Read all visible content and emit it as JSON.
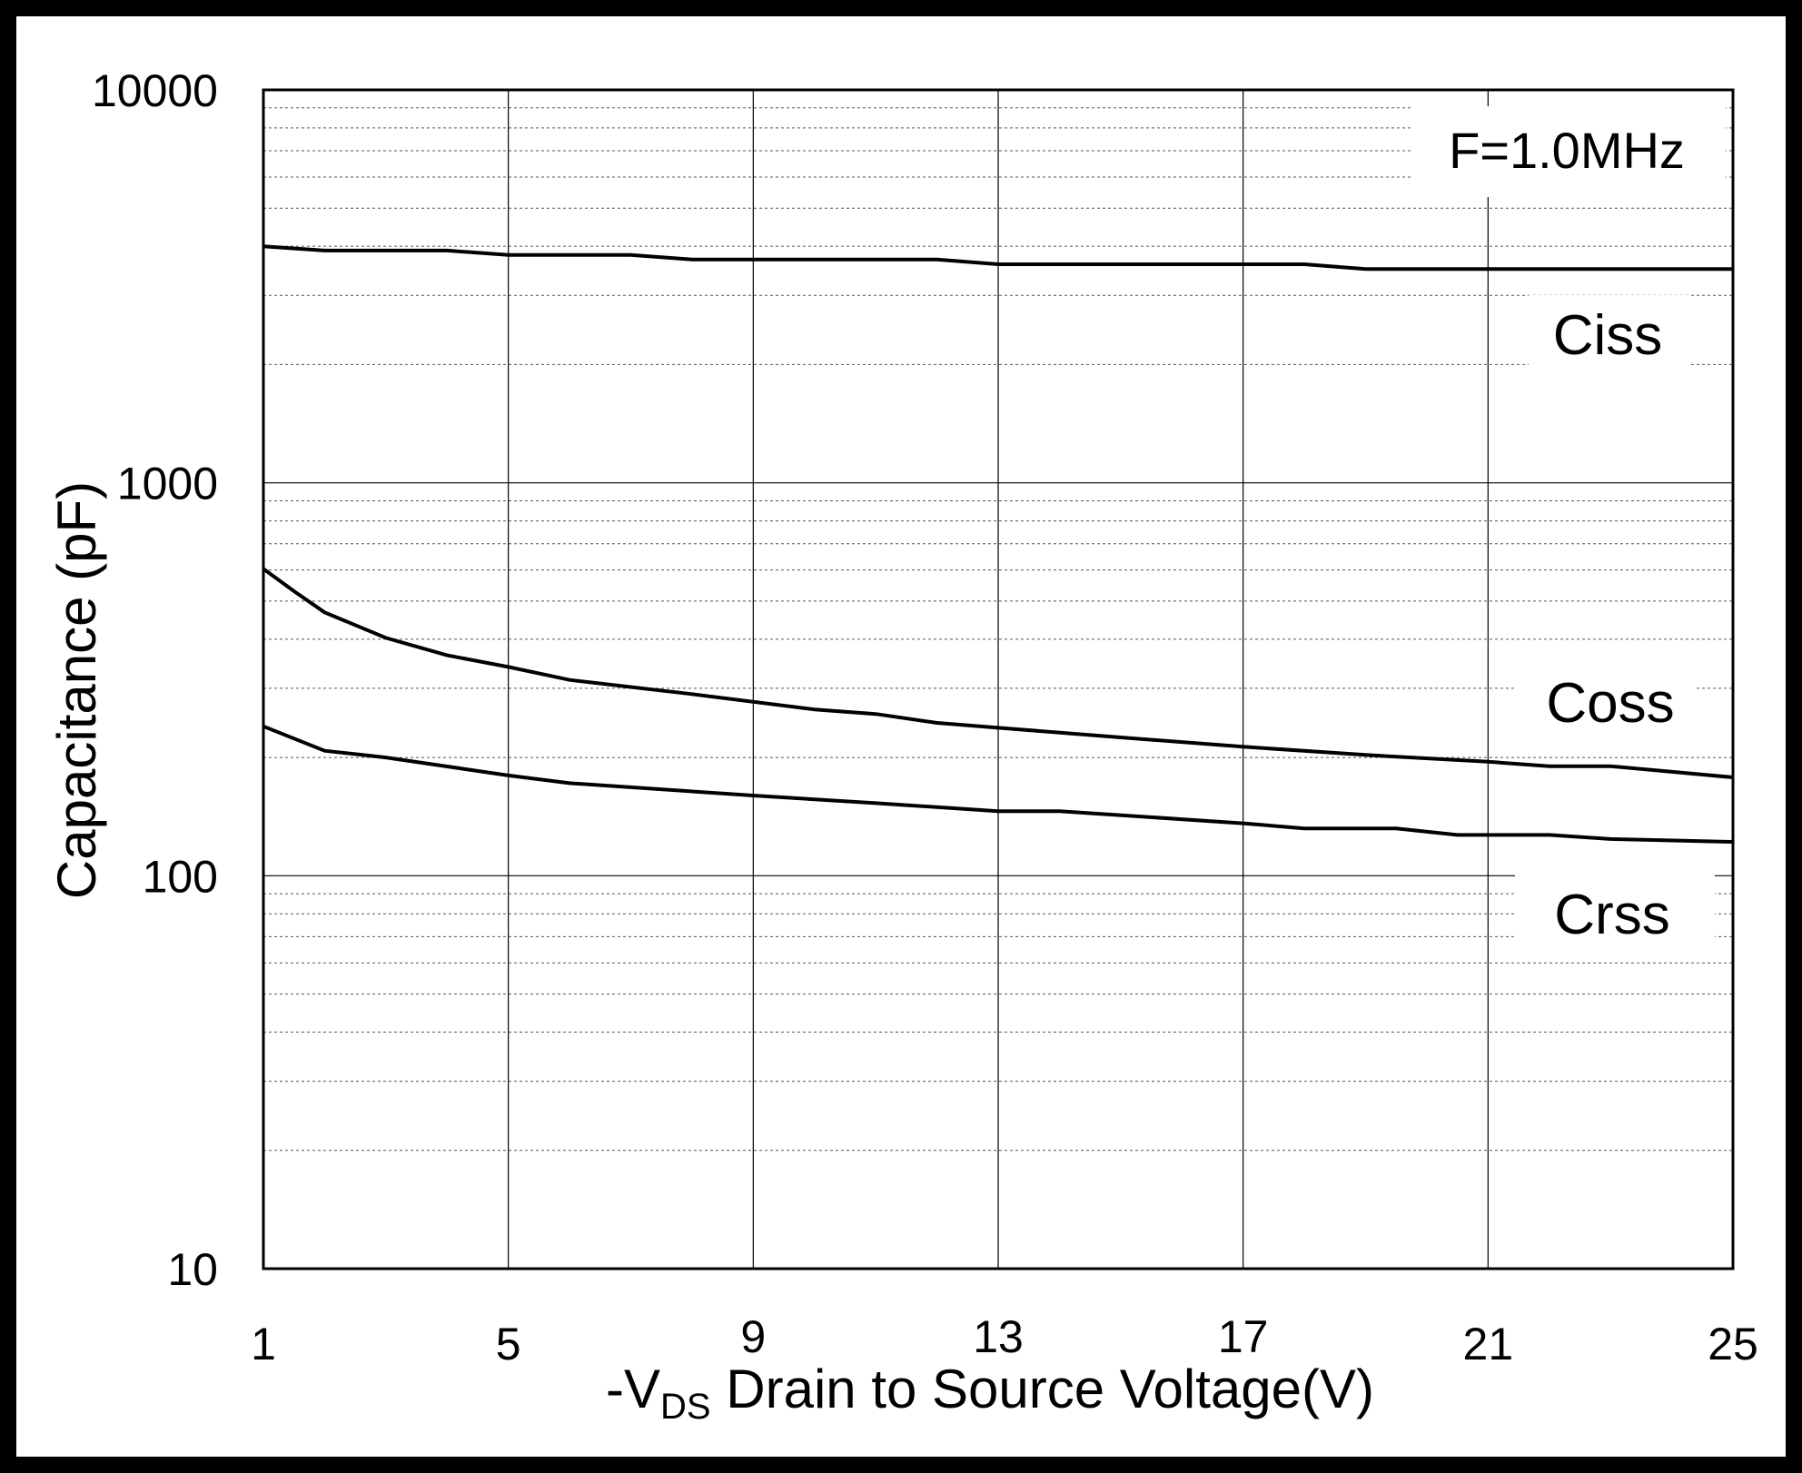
{
  "chart_data": {
    "type": "line",
    "title": "",
    "xlabel_prefix": "-V",
    "xlabel_sub": "DS",
    "xlabel_rest": " Drain to Source Voltage(V)",
    "ylabel": "Capacitance (pF)",
    "xlim": [
      1,
      25
    ],
    "ylim": [
      10,
      10000
    ],
    "yscale": "log",
    "x_ticks": [
      "1",
      "5",
      "9",
      "13",
      "17",
      "21",
      "25"
    ],
    "y_ticks": [
      "10",
      "100",
      "1000",
      "10000"
    ],
    "annotation": "F=1.0MHz",
    "grid": true,
    "series": [
      {
        "name": "Ciss",
        "x": [
          1,
          2,
          4,
          5,
          7,
          8,
          12,
          13,
          18,
          19,
          25
        ],
        "values": [
          4000,
          3900,
          3900,
          3800,
          3800,
          3700,
          3700,
          3600,
          3600,
          3500,
          3500
        ]
      },
      {
        "name": "Coss",
        "x": [
          1,
          1.5,
          2,
          3,
          4,
          5,
          6,
          8,
          10,
          11,
          12,
          13,
          15,
          17,
          19,
          21,
          22,
          23,
          25
        ],
        "values": [
          604,
          530,
          468,
          403,
          364,
          340,
          315,
          290,
          265,
          258,
          245,
          238,
          225,
          213,
          203,
          195,
          190,
          190,
          178
        ]
      },
      {
        "name": "Crss",
        "x": [
          1,
          2,
          3,
          5,
          6,
          9,
          11,
          13,
          14,
          17,
          18,
          19.5,
          20.5,
          22,
          23,
          25
        ],
        "values": [
          240,
          208,
          200,
          180,
          172,
          160,
          153,
          146,
          146,
          136,
          132,
          132,
          127,
          127,
          124,
          122
        ]
      }
    ]
  }
}
